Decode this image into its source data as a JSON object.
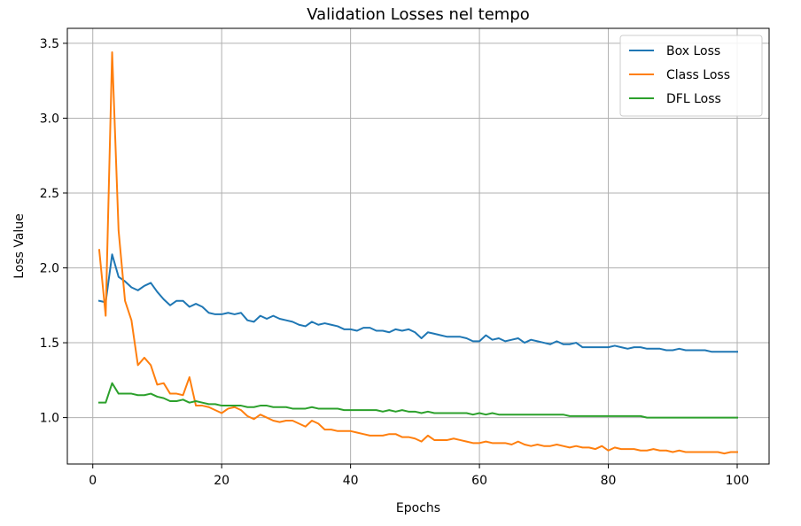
{
  "chart_data": {
    "type": "line",
    "title": "Validation Losses nel tempo",
    "xlabel": "Epochs",
    "ylabel": "Loss Value",
    "xlim": [
      -3.95,
      104.95
    ],
    "ylim": [
      0.69,
      3.6
    ],
    "xticks": [
      0,
      20,
      40,
      60,
      80,
      100
    ],
    "yticks": [
      1.0,
      1.5,
      2.0,
      2.5,
      3.0,
      3.5
    ],
    "ytick_labels": [
      "1.0",
      "1.5",
      "2.0",
      "2.5",
      "3.0",
      "3.5"
    ],
    "grid": true,
    "legend_position": "top-right",
    "series": [
      {
        "name": "Box Loss",
        "color": "#1f77b4",
        "x": [
          1,
          2,
          3,
          4,
          5,
          6,
          7,
          8,
          9,
          10,
          11,
          12,
          13,
          14,
          15,
          16,
          17,
          18,
          19,
          20,
          21,
          22,
          23,
          24,
          25,
          26,
          27,
          28,
          29,
          30,
          31,
          32,
          33,
          34,
          35,
          36,
          37,
          38,
          39,
          40,
          41,
          42,
          43,
          44,
          45,
          46,
          47,
          48,
          49,
          50,
          51,
          52,
          53,
          54,
          55,
          56,
          57,
          58,
          59,
          60,
          61,
          62,
          63,
          64,
          65,
          66,
          67,
          68,
          69,
          70,
          71,
          72,
          73,
          74,
          75,
          76,
          77,
          78,
          79,
          80,
          81,
          82,
          83,
          84,
          85,
          86,
          87,
          88,
          89,
          90,
          91,
          92,
          93,
          94,
          95,
          96,
          97,
          98,
          99,
          100
        ],
        "y": [
          1.78,
          1.77,
          2.09,
          1.94,
          1.91,
          1.87,
          1.85,
          1.88,
          1.9,
          1.84,
          1.79,
          1.75,
          1.78,
          1.78,
          1.74,
          1.76,
          1.74,
          1.7,
          1.69,
          1.69,
          1.7,
          1.69,
          1.7,
          1.65,
          1.64,
          1.68,
          1.66,
          1.68,
          1.66,
          1.65,
          1.64,
          1.62,
          1.61,
          1.64,
          1.62,
          1.63,
          1.62,
          1.61,
          1.59,
          1.59,
          1.58,
          1.6,
          1.6,
          1.58,
          1.58,
          1.57,
          1.59,
          1.58,
          1.59,
          1.57,
          1.53,
          1.57,
          1.56,
          1.55,
          1.54,
          1.54,
          1.54,
          1.53,
          1.51,
          1.51,
          1.55,
          1.52,
          1.53,
          1.51,
          1.52,
          1.53,
          1.5,
          1.52,
          1.51,
          1.5,
          1.49,
          1.51,
          1.49,
          1.49,
          1.5,
          1.47,
          1.47,
          1.47,
          1.47,
          1.47,
          1.48,
          1.47,
          1.46,
          1.47,
          1.47,
          1.46,
          1.46,
          1.46,
          1.45,
          1.45,
          1.46,
          1.45,
          1.45,
          1.45,
          1.45,
          1.44,
          1.44,
          1.44,
          1.44,
          1.44
        ]
      },
      {
        "name": "Class Loss",
        "color": "#ff7f0e",
        "x": [
          1,
          2,
          3,
          4,
          5,
          6,
          7,
          8,
          9,
          10,
          11,
          12,
          13,
          14,
          15,
          16,
          17,
          18,
          19,
          20,
          21,
          22,
          23,
          24,
          25,
          26,
          27,
          28,
          29,
          30,
          31,
          32,
          33,
          34,
          35,
          36,
          37,
          38,
          39,
          40,
          41,
          42,
          43,
          44,
          45,
          46,
          47,
          48,
          49,
          50,
          51,
          52,
          53,
          54,
          55,
          56,
          57,
          58,
          59,
          60,
          61,
          62,
          63,
          64,
          65,
          66,
          67,
          68,
          69,
          70,
          71,
          72,
          73,
          74,
          75,
          76,
          77,
          78,
          79,
          80,
          81,
          82,
          83,
          84,
          85,
          86,
          87,
          88,
          89,
          90,
          91,
          92,
          93,
          94,
          95,
          96,
          97,
          98,
          99,
          100
        ],
        "y": [
          2.12,
          1.68,
          3.44,
          2.25,
          1.78,
          1.65,
          1.35,
          1.4,
          1.35,
          1.22,
          1.23,
          1.16,
          1.16,
          1.15,
          1.27,
          1.08,
          1.08,
          1.07,
          1.05,
          1.03,
          1.06,
          1.07,
          1.05,
          1.01,
          0.99,
          1.02,
          1.0,
          0.98,
          0.97,
          0.98,
          0.98,
          0.96,
          0.94,
          0.98,
          0.96,
          0.92,
          0.92,
          0.91,
          0.91,
          0.91,
          0.9,
          0.89,
          0.88,
          0.88,
          0.88,
          0.89,
          0.89,
          0.87,
          0.87,
          0.86,
          0.84,
          0.88,
          0.85,
          0.85,
          0.85,
          0.86,
          0.85,
          0.84,
          0.83,
          0.83,
          0.84,
          0.83,
          0.83,
          0.83,
          0.82,
          0.84,
          0.82,
          0.81,
          0.82,
          0.81,
          0.81,
          0.82,
          0.81,
          0.8,
          0.81,
          0.8,
          0.8,
          0.79,
          0.81,
          0.78,
          0.8,
          0.79,
          0.79,
          0.79,
          0.78,
          0.78,
          0.79,
          0.78,
          0.78,
          0.77,
          0.78,
          0.77,
          0.77,
          0.77,
          0.77,
          0.77,
          0.77,
          0.76,
          0.77,
          0.77
        ]
      },
      {
        "name": "DFL Loss",
        "color": "#2ca02c",
        "x": [
          1,
          2,
          3,
          4,
          5,
          6,
          7,
          8,
          9,
          10,
          11,
          12,
          13,
          14,
          15,
          16,
          17,
          18,
          19,
          20,
          21,
          22,
          23,
          24,
          25,
          26,
          27,
          28,
          29,
          30,
          31,
          32,
          33,
          34,
          35,
          36,
          37,
          38,
          39,
          40,
          41,
          42,
          43,
          44,
          45,
          46,
          47,
          48,
          49,
          50,
          51,
          52,
          53,
          54,
          55,
          56,
          57,
          58,
          59,
          60,
          61,
          62,
          63,
          64,
          65,
          66,
          67,
          68,
          69,
          70,
          71,
          72,
          73,
          74,
          75,
          76,
          77,
          78,
          79,
          80,
          81,
          82,
          83,
          84,
          85,
          86,
          87,
          88,
          89,
          90,
          91,
          92,
          93,
          94,
          95,
          96,
          97,
          98,
          99,
          100
        ],
        "y": [
          1.1,
          1.1,
          1.23,
          1.16,
          1.16,
          1.16,
          1.15,
          1.15,
          1.16,
          1.14,
          1.13,
          1.11,
          1.11,
          1.12,
          1.1,
          1.11,
          1.1,
          1.09,
          1.09,
          1.08,
          1.08,
          1.08,
          1.08,
          1.07,
          1.07,
          1.08,
          1.08,
          1.07,
          1.07,
          1.07,
          1.06,
          1.06,
          1.06,
          1.07,
          1.06,
          1.06,
          1.06,
          1.06,
          1.05,
          1.05,
          1.05,
          1.05,
          1.05,
          1.05,
          1.04,
          1.05,
          1.04,
          1.05,
          1.04,
          1.04,
          1.03,
          1.04,
          1.03,
          1.03,
          1.03,
          1.03,
          1.03,
          1.03,
          1.02,
          1.03,
          1.02,
          1.03,
          1.02,
          1.02,
          1.02,
          1.02,
          1.02,
          1.02,
          1.02,
          1.02,
          1.02,
          1.02,
          1.02,
          1.01,
          1.01,
          1.01,
          1.01,
          1.01,
          1.01,
          1.01,
          1.01,
          1.01,
          1.01,
          1.01,
          1.01,
          1.0,
          1.0,
          1.0,
          1.0,
          1.0,
          1.0,
          1.0,
          1.0,
          1.0,
          1.0,
          1.0,
          1.0,
          1.0,
          1.0,
          1.0
        ]
      }
    ]
  }
}
